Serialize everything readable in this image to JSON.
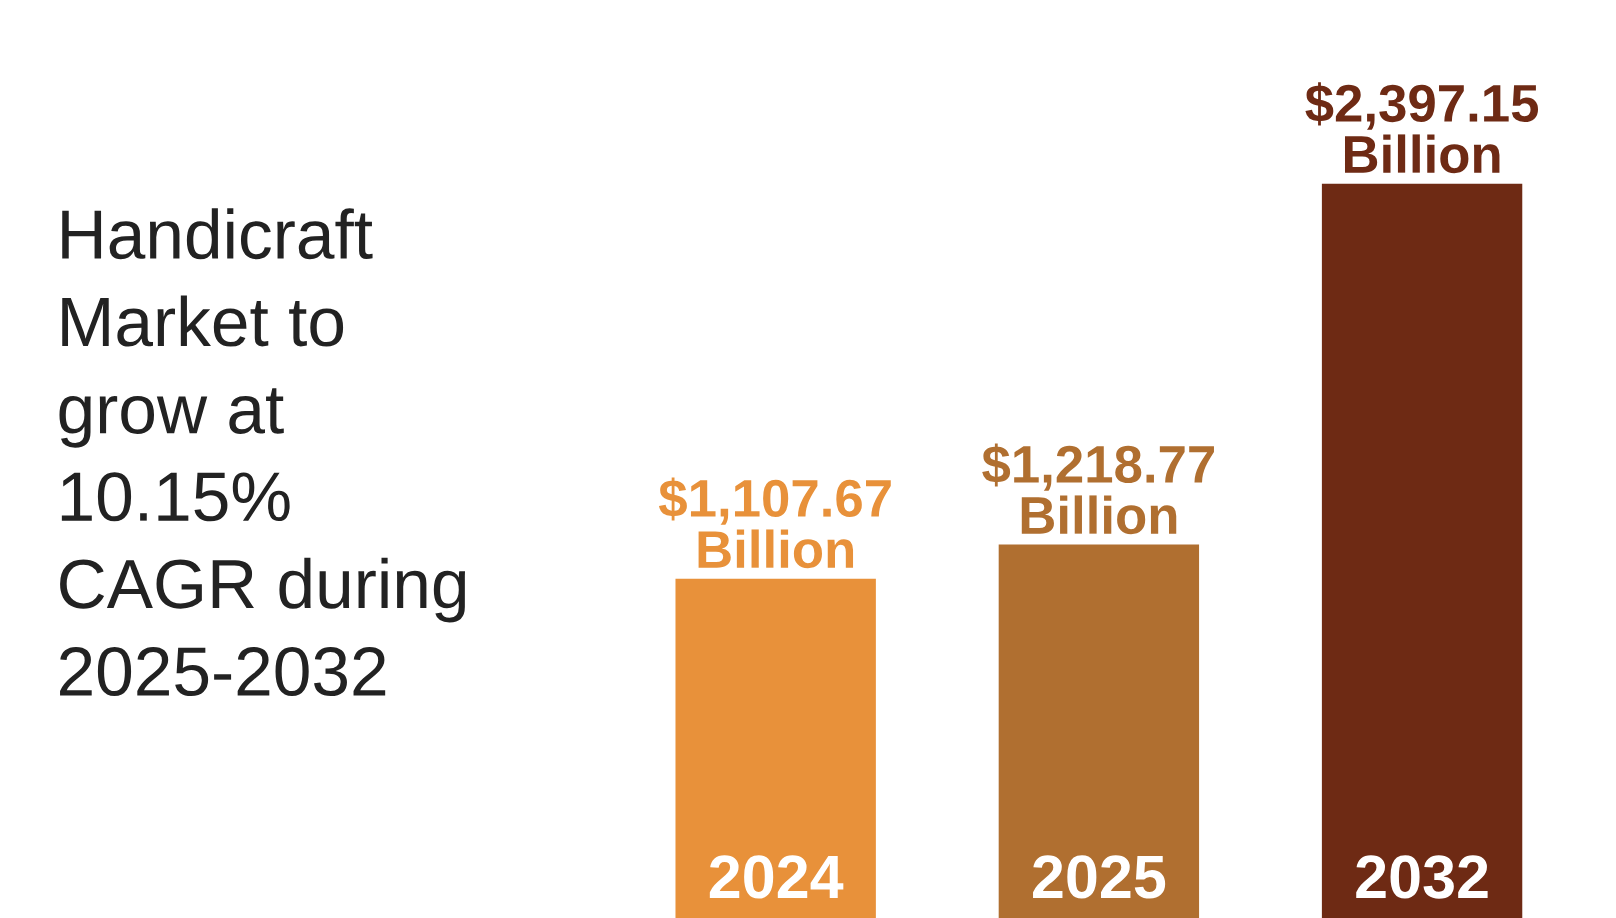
{
  "chart_data": {
    "type": "bar",
    "title": "Handicraft\nMarket to\ngrow at\n10.15%\nCAGR during\n2025-2032",
    "categories": [
      "2024",
      "2025",
      "2032"
    ],
    "values": [
      1107.67,
      1218.77,
      2397.15
    ],
    "colors": [
      "#e8913a",
      "#b06f30",
      "#6e2a14"
    ],
    "value_labels": [
      "$1,107.67\nBillion",
      "$1,218.77\nBillion",
      "$2,397.15\nBillion"
    ],
    "tick_labels": false
  }
}
